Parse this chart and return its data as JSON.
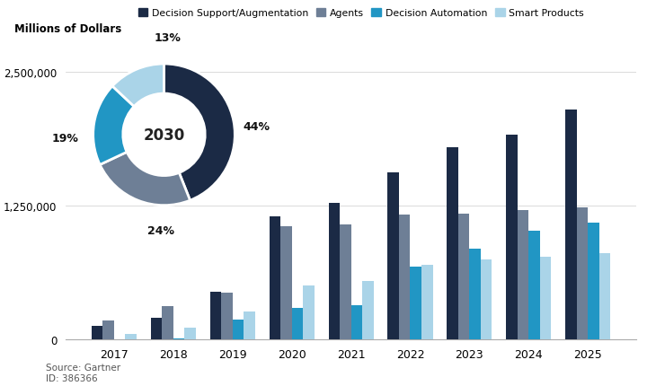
{
  "ylabel": "Millions of Dollars",
  "years": [
    2017,
    2018,
    2019,
    2020,
    2021,
    2022,
    2023,
    2024,
    2025
  ],
  "decision_support": [
    130000,
    200000,
    450000,
    1150000,
    1280000,
    1560000,
    1800000,
    1920000,
    2150000
  ],
  "agents": [
    180000,
    310000,
    440000,
    1060000,
    1080000,
    1170000,
    1175000,
    1210000,
    1240000
  ],
  "decision_automation": [
    4000,
    8000,
    185000,
    300000,
    320000,
    680000,
    850000,
    1020000,
    1090000
  ],
  "smart_products": [
    55000,
    110000,
    265000,
    510000,
    545000,
    700000,
    750000,
    775000,
    810000
  ],
  "colors": {
    "decision_support": "#1b2a45",
    "agents": "#6e7f96",
    "decision_automation": "#2196c4",
    "smart_products": "#aad4e8"
  },
  "donut": {
    "values": [
      44,
      24,
      19,
      13
    ],
    "colors": [
      "#1b2a45",
      "#6e7f96",
      "#2196c4",
      "#aad4e8"
    ],
    "center_text": "2030"
  },
  "ylim": [
    0,
    2750000
  ],
  "yticks": [
    0,
    1250000,
    2500000
  ],
  "source_text": "Source: Gartner\nID: 386366",
  "legend_labels": [
    "Decision Support/Augmentation",
    "Agents",
    "Decision Automation",
    "Smart Products"
  ],
  "bg_color": "#ffffff"
}
